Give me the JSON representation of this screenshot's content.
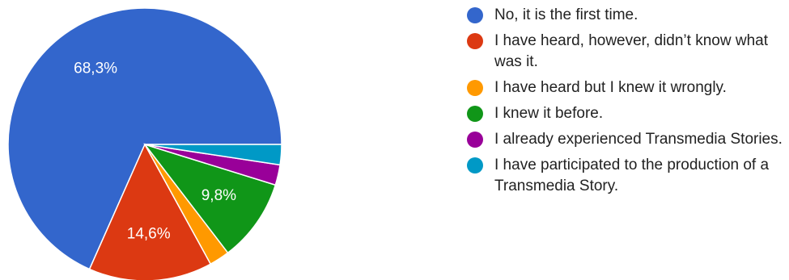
{
  "chart_data": {
    "type": "pie",
    "title": "",
    "slices": [
      {
        "label": "No, it is the first time.",
        "value": 68.3,
        "display": "68,3%",
        "color": "#3366cc"
      },
      {
        "label": "I have heard, however, didn’t know what was it.",
        "value": 14.6,
        "display": "14,6%",
        "color": "#dc3912"
      },
      {
        "label": "I have heard but I knew it wrongly.",
        "value": 2.4,
        "display": "",
        "color": "#ff9900"
      },
      {
        "label": "I knew it before.",
        "value": 9.8,
        "display": "9,8%",
        "color": "#109618"
      },
      {
        "label": "I already experienced Transmedia Stories.",
        "value": 2.4,
        "display": "",
        "color": "#990099"
      },
      {
        "label": "I have participated to the production of a Transmedia Story.",
        "value": 2.4,
        "display": "",
        "color": "#0099c6"
      }
    ],
    "legend": "right"
  }
}
